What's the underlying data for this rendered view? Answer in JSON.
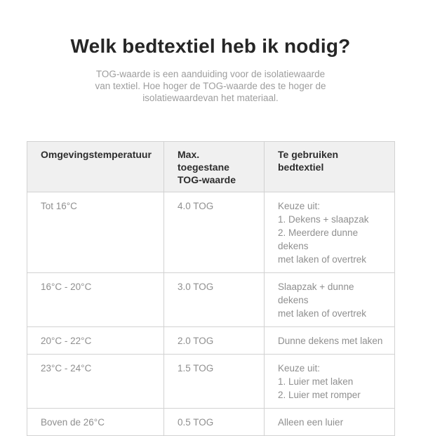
{
  "header": {
    "title": "Welk bedtextiel heb ik nodig?",
    "subtitle": "TOG-waarde is een aanduiding voor de isolatiewaarde\nvan textiel. Hoe hoger de TOG-waarde des te hoger de\nisolatiewaardevan het materiaal."
  },
  "table": {
    "headers": [
      "Omgevingstemperatuur",
      "Max. toegestane\nTOG-waarde",
      "Te gebruiken\nbedtextiel"
    ],
    "rows": [
      {
        "temperature": "Tot 16°C",
        "tog": "4.0 TOG",
        "bedtextiel": "Keuze uit:\n1. Dekens + slaapzak\n2. Meerdere dunne dekens\nmet laken of overtrek"
      },
      {
        "temperature": "16°C - 20°C",
        "tog": "3.0 TOG",
        "bedtextiel": "Slaapzak + dunne dekens\nmet laken of overtrek"
      },
      {
        "temperature": "20°C - 22°C",
        "tog": "2.0 TOG",
        "bedtextiel": "Dunne dekens met laken"
      },
      {
        "temperature": "23°C - 24°C",
        "tog": "1.5 TOG",
        "bedtextiel": "Keuze uit:\n1. Luier met laken\n2. Luier met romper"
      },
      {
        "temperature": "Boven de 26°C",
        "tog": "0.5 TOG",
        "bedtextiel": "Alleen een luier"
      }
    ]
  },
  "colors": {
    "page_background": "#ffffff",
    "table_header_background": "#f0f0f0",
    "table_border": "#d2d2d2",
    "title_text": "#262626",
    "subtitle_text": "#9d9d9d",
    "header_text": "#2d2d2d",
    "cell_text": "#8f8f8f"
  }
}
